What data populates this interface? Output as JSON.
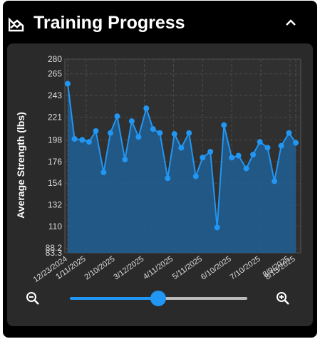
{
  "header": {
    "title": "Training Progress"
  },
  "chart_data": {
    "type": "area",
    "y_label": "Average Strength (lbs)",
    "color": "#2196f3",
    "fill": "#1f5f94",
    "x": [
      "12/23/2024",
      "12/30/2024",
      "1/7/2025",
      "1/14/2025",
      "1/21/2025",
      "1/29/2025",
      "2/5/2025",
      "2/12/2025",
      "2/20/2025",
      "2/27/2025",
      "3/6/2025",
      "3/14/2025",
      "3/21/2025",
      "3/28/2025",
      "4/5/2025",
      "4/12/2025",
      "4/19/2025",
      "4/27/2025",
      "5/4/2025",
      "5/11/2025",
      "5/19/2025",
      "5/26/2025",
      "6/2/2025",
      "6/10/2025",
      "6/17/2025",
      "6/25/2025",
      "7/2/2025",
      "7/9/2025",
      "7/17/2025",
      "7/24/2025",
      "7/31/2025",
      "8/8/2025",
      "8/15/2025"
    ],
    "values": [
      255,
      199,
      198,
      196,
      207,
      165,
      205,
      222,
      178,
      217,
      201,
      230,
      209,
      205,
      159,
      204,
      190,
      205,
      161,
      180,
      186,
      109,
      213,
      180,
      182,
      169,
      183,
      196,
      190,
      156,
      192,
      205,
      195
    ],
    "xlim": [
      "12/23/2024",
      "8/15/2025"
    ],
    "xticks": [
      "12/23/2024",
      "1/11/2025",
      "2/10/2025",
      "3/12/2025",
      "4/11/2025",
      "5/11/2025",
      "6/10/2025",
      "7/10/2025",
      "8/9/2025",
      "8/15/2025"
    ],
    "ylim": [
      83.3,
      280
    ],
    "yticks": [
      83.3,
      88.2,
      110,
      132,
      154,
      176,
      198,
      221,
      243,
      265,
      280
    ],
    "grid": true
  }
}
